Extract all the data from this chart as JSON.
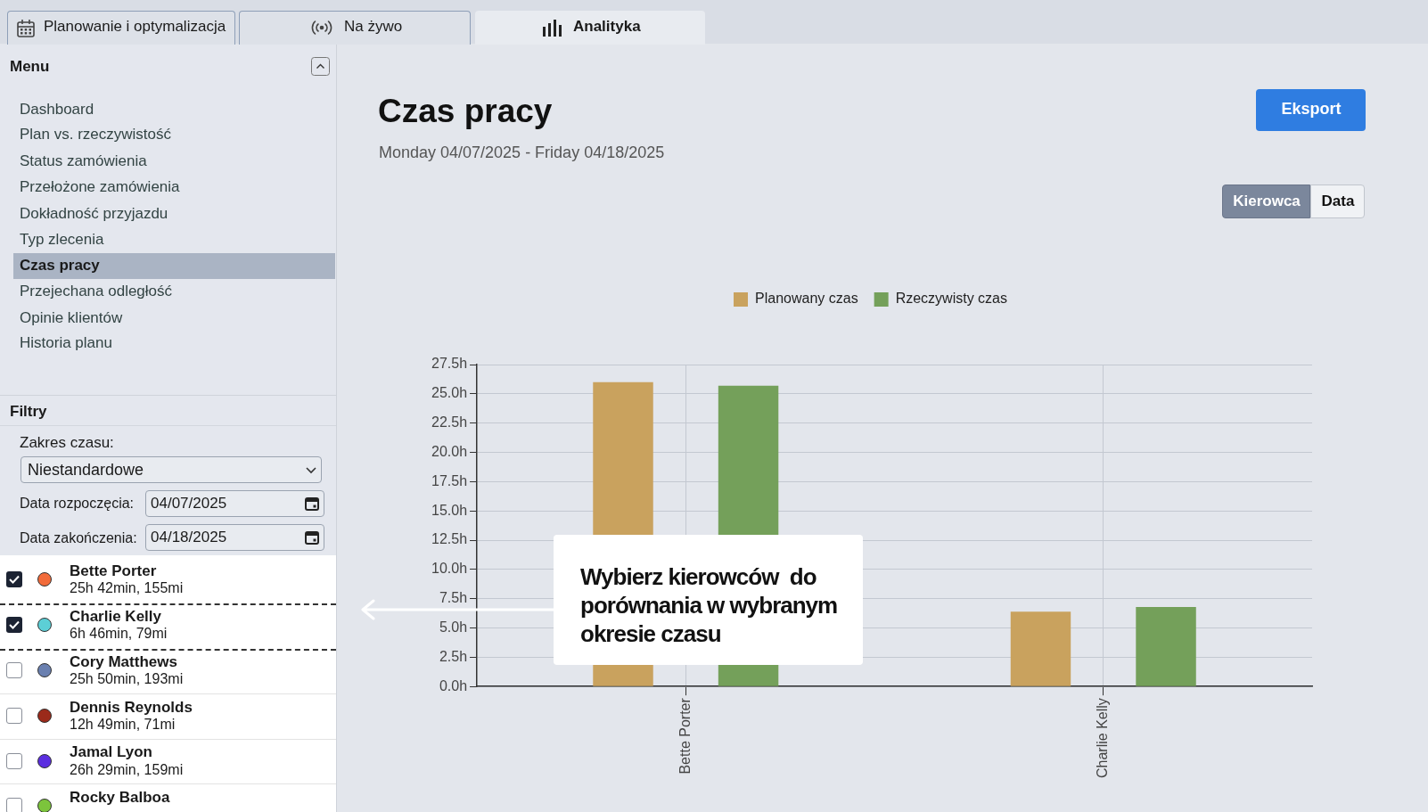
{
  "chart_data": {
    "type": "bar",
    "title": "Czas pracy",
    "subtitle": "Monday 04/07/2025 - Friday 04/18/2025",
    "categories": [
      "Bette Porter",
      "Charlie Kelly"
    ],
    "series": [
      {
        "name": "Planowany czas",
        "color": "#c9a25e",
        "values": [
          26.0,
          6.4
        ]
      },
      {
        "name": "Rzeczywisty czas",
        "color": "#74a05a",
        "values": [
          25.7,
          6.8
        ]
      }
    ],
    "ylim": [
      0,
      27.5
    ],
    "yticks": [
      {
        "value": 0,
        "label": "0.0h"
      },
      {
        "value": 2.5,
        "label": "2.5h"
      },
      {
        "value": 5,
        "label": "5.0h"
      },
      {
        "value": 7.5,
        "label": "7.5h"
      },
      {
        "value": 10,
        "label": "10.0h"
      },
      {
        "value": 12.5,
        "label": "12.5h"
      },
      {
        "value": 15,
        "label": "15.0h"
      },
      {
        "value": 17.5,
        "label": "17.5h"
      },
      {
        "value": 20,
        "label": "20.0h"
      },
      {
        "value": 22.5,
        "label": "22.5h"
      },
      {
        "value": 25,
        "label": "25.0h"
      },
      {
        "value": 27.5,
        "label": "27.5h"
      }
    ],
    "grid": true,
    "legend": "top",
    "annotations": [
      "Planowanie i optymalizacja",
      "Na żywo",
      "Analityka",
      "Menu",
      "Dashboard",
      "Plan vs. rzeczywistość",
      "Status zamówienia",
      "Przełożone zamówienia",
      "Dokładność przyjazdu",
      "Typ zlecenia",
      "Czas pracy",
      "Przejechana odległość",
      "Opinie klientów",
      "Historia planu",
      "Filtry",
      "Zakres czasu:",
      "Niestandardowe",
      "Data rozpoczęcia:",
      "04/07/2025",
      "Data zakończenia:",
      "04/18/2025",
      "Bette Porter",
      "25h 42min, 155mi",
      "Charlie Kelly",
      "6h 46min, 79mi",
      "Cory Matthews",
      "25h 50min, 193mi",
      "Dennis Reynolds",
      "12h 49min, 71mi",
      "Jamal Lyon",
      "26h 29min, 159mi",
      "Rocky Balboa",
      "Eksport",
      "Kierowca",
      "Data",
      "Wybierz kierowców  do porównania w wybranym okresie czasu"
    ]
  }
}
